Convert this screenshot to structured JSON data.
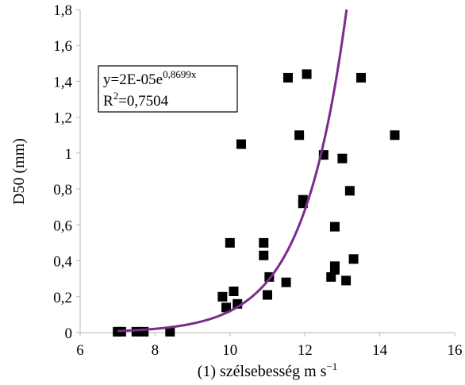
{
  "chart_data": {
    "type": "scatter",
    "xlabel_main": "(1) szélsebesség m s",
    "xlabel_sup": "−1",
    "ylabel": "D50 (mm)",
    "xlim": [
      6,
      16
    ],
    "ylim": [
      0,
      1.8
    ],
    "x_ticks": [
      "6",
      "8",
      "10",
      "12",
      "14",
      "16"
    ],
    "y_ticks": [
      "0",
      "0,2",
      "0,4",
      "0,6",
      "0,8",
      "1",
      "1,2",
      "1,4",
      "1,6",
      "1,8"
    ],
    "grid": "none",
    "legend": "none",
    "marker_color": "#000000",
    "trendline_color": "#7b2b8c",
    "equation": {
      "line1_base": "y=2E-05e",
      "line1_exp": "0,8699x",
      "line2_base": "R",
      "line2_sup": "2",
      "line2_rest": "=0,7504"
    },
    "trendline": {
      "a": 2e-05,
      "b": 0.8699
    },
    "points": [
      [
        7.0,
        0.005
      ],
      [
        7.1,
        0.005
      ],
      [
        7.5,
        0.005
      ],
      [
        7.7,
        0.005
      ],
      [
        8.4,
        0.005
      ],
      [
        9.8,
        0.2
      ],
      [
        9.9,
        0.14
      ],
      [
        10.0,
        0.5
      ],
      [
        10.1,
        0.23
      ],
      [
        10.2,
        0.16
      ],
      [
        10.3,
        1.05
      ],
      [
        10.9,
        0.5
      ],
      [
        10.9,
        0.43
      ],
      [
        11.0,
        0.21
      ],
      [
        11.05,
        0.31
      ],
      [
        11.5,
        0.28
      ],
      [
        11.55,
        1.42
      ],
      [
        11.85,
        1.1
      ],
      [
        11.95,
        0.74
      ],
      [
        11.95,
        0.72
      ],
      [
        12.05,
        1.44
      ],
      [
        12.5,
        0.99
      ],
      [
        12.7,
        0.31
      ],
      [
        12.8,
        0.59
      ],
      [
        12.8,
        0.37
      ],
      [
        12.8,
        0.35
      ],
      [
        13.0,
        0.97
      ],
      [
        13.1,
        0.29
      ],
      [
        13.2,
        0.79
      ],
      [
        13.3,
        0.41
      ],
      [
        13.5,
        1.42
      ],
      [
        14.4,
        1.1
      ]
    ]
  }
}
